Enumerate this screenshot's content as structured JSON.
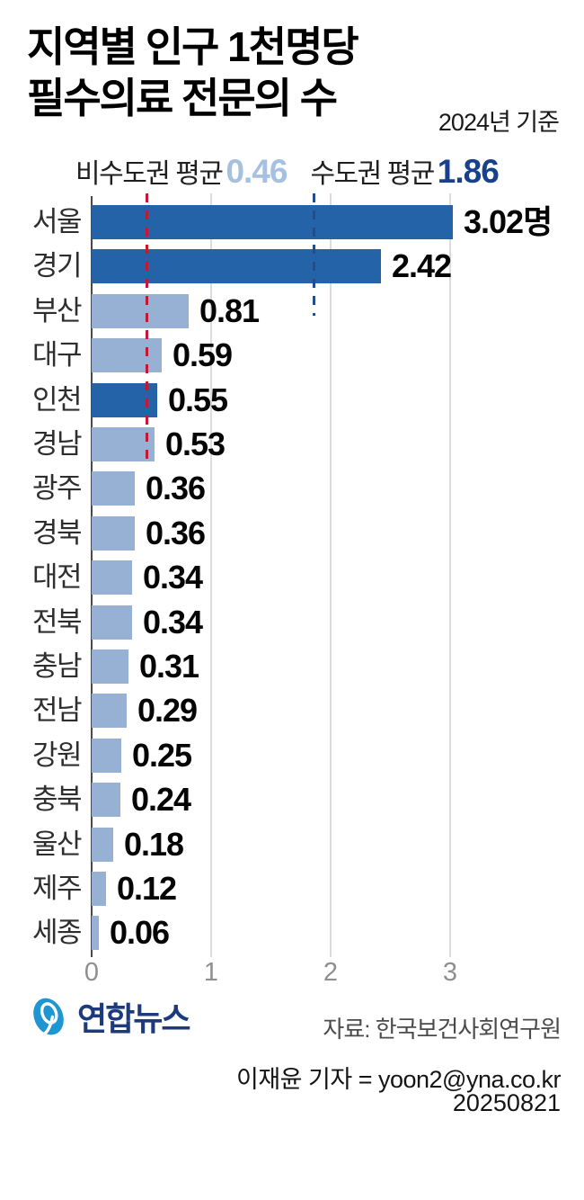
{
  "header": {
    "title": "지역별 인구 1천명당\n필수의료 전문의 수",
    "date_note": "2024년 기준"
  },
  "legend": {
    "noncapital_label": "비수도권 평균",
    "noncapital_value": "0.46",
    "capital_label": "수도권 평균",
    "capital_value": "1.86"
  },
  "chart_data": {
    "type": "bar",
    "orientation": "horizontal",
    "title": "지역별 인구 1천명당 필수의료 전문의 수",
    "categories": [
      "서울",
      "경기",
      "부산",
      "대구",
      "인천",
      "경남",
      "광주",
      "경북",
      "대전",
      "전북",
      "충남",
      "전남",
      "강원",
      "충북",
      "울산",
      "제주",
      "세종"
    ],
    "values": [
      3.02,
      2.42,
      0.81,
      0.59,
      0.55,
      0.53,
      0.36,
      0.36,
      0.34,
      0.34,
      0.31,
      0.29,
      0.25,
      0.24,
      0.18,
      0.12,
      0.06
    ],
    "value_labels": [
      "3.02명",
      "2.42",
      "0.81",
      "0.59",
      "0.55",
      "0.53",
      "0.36",
      "0.36",
      "0.34",
      "0.34",
      "0.31",
      "0.29",
      "0.25",
      "0.24",
      "0.18",
      "0.12",
      "0.06"
    ],
    "capital_region_indices": [
      0,
      1,
      4
    ],
    "colors": {
      "capital": "#2563a8",
      "noncapital": "#97b1d5"
    },
    "reference_lines": [
      {
        "name": "비수도권 평균",
        "value": 0.46,
        "color": "#c41837",
        "style": "dashed"
      },
      {
        "name": "수도권 평균",
        "value": 1.86,
        "color": "#1f4e8c",
        "style": "dashed"
      }
    ],
    "xticks": [
      "0",
      "1",
      "2",
      "3"
    ],
    "xlim": [
      0,
      3.9
    ],
    "grid": true,
    "legend_position": "top"
  },
  "footer": {
    "brand": "연합뉴스",
    "source": "자료: 한국보건사회연구원",
    "credit": "이재윤 기자 = yoon2@yna.co.kr",
    "date": "20250821"
  }
}
